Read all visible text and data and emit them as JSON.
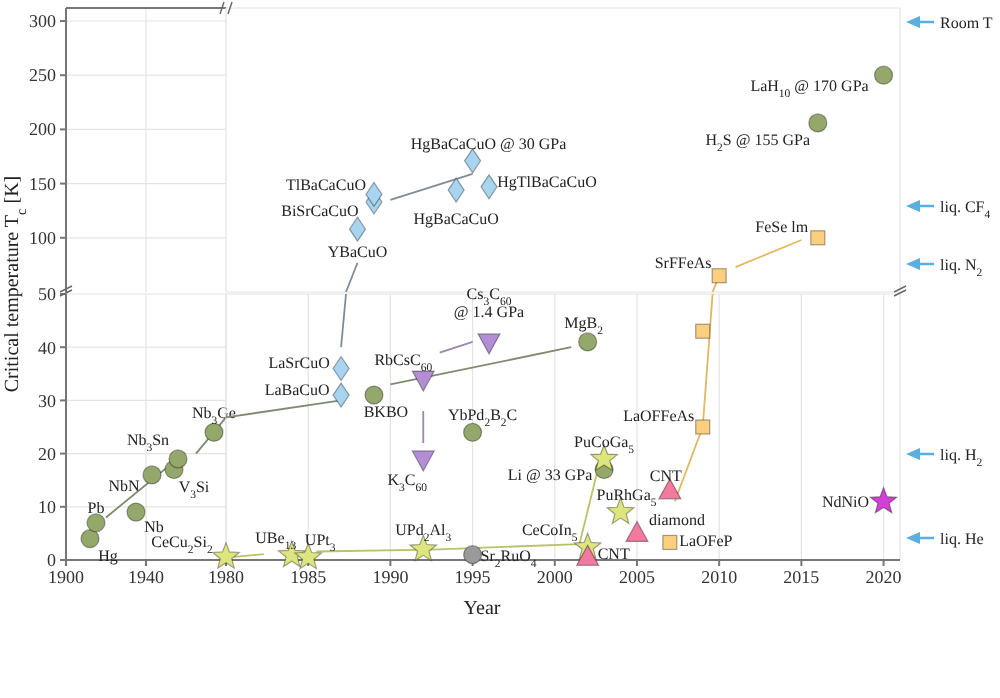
{
  "chart_data": [
    {
      "type": "scatter",
      "xlim": [
        1900,
        1980
      ],
      "xticks": [
        1900,
        1940
      ],
      "ylim": [
        50,
        312
      ],
      "yticks": [
        100,
        150,
        200,
        250,
        300
      ],
      "grid": true,
      "tick_labels": "y"
    },
    {
      "type": "scatter",
      "xlim": [
        1980,
        2021
      ],
      "xticks": [
        1980,
        1985,
        1990,
        1995,
        2000,
        2005,
        2010,
        2015,
        2020
      ],
      "ylim": [
        50,
        312
      ],
      "yticks": [
        100,
        150,
        200,
        250,
        300
      ],
      "grid": true,
      "tick_labels": false,
      "series": [
        {
          "type": "line",
          "marker": "none",
          "color": "#7f8c98",
          "x": [
            1987.3,
            1988,
            1989,
            1990,
            1995
          ],
          "values": [
            50,
            77,
            null,
            135,
            159
          ]
        },
        {
          "type": "line",
          "marker": "none",
          "color": "#e0b860",
          "x": [
            2009.6,
            2010,
            2010.5,
            2011,
            2015
          ],
          "values": [
            50,
            65,
            null,
            73,
            98
          ]
        },
        {
          "marker": "circle",
          "color": "#95a86b",
          "x": [
            2016,
            2020
          ],
          "values": [
            206,
            250
          ]
        },
        {
          "marker": "diamond",
          "color": "#a8d4f0",
          "x": [
            1988,
            1989,
            1989,
            1994,
            1995,
            1996
          ],
          "values": [
            108,
            133,
            140,
            144,
            171,
            147
          ]
        },
        {
          "marker": "square",
          "color": "#fbcf7f",
          "x": [
            2010,
            2016
          ],
          "values": [
            65,
            100
          ]
        }
      ],
      "annotations": [
        {
          "text": "YBaCuO",
          "x": 1988,
          "y": 108
        },
        {
          "text": "BiSrCaCuO",
          "x": 1989,
          "y": 133
        },
        {
          "text": "TlBaCaCuO",
          "x": 1989,
          "y": 140
        },
        {
          "text": "HgBaCaCuO @ 30 GPa",
          "x": 1995,
          "y": 171
        },
        {
          "text": "HgBaCaCuO",
          "x": 1994,
          "y": 144
        },
        {
          "text": "HgTlBaCaCuO",
          "x": 1996,
          "y": 147
        },
        {
          "text": "SrFFeAs",
          "x": 2010,
          "y": 65
        },
        {
          "text": "FeSe  lm",
          "x": 2016,
          "y": 100
        },
        {
          "text": "H$_{2}$S @ 155 GPa",
          "x": 2016,
          "y": 206
        },
        {
          "text": "LaH$_{10}$ @  170 GPa",
          "x": 2020,
          "y": 250
        },
        "Room T",
        "liq. CF$_{4}$",
        "liq. N$_{2}$"
      ]
    },
    {
      "type": "scatter",
      "ylabel": "Critical temperature T$_{c}$ [K]",
      "xlim": [
        1900,
        1980
      ],
      "xticks": [
        1900,
        1940
      ],
      "ylim": [
        0,
        50
      ],
      "yticks": [
        0,
        10,
        20,
        30,
        40,
        50
      ],
      "grid": true,
      "series": [
        {
          "type": "line",
          "marker": "none",
          "color": "#808a70",
          "x": [
            1920,
            1959,
            1962,
            1965,
            1980
          ],
          "values": [
            8,
            20,
            null,
            20,
            26.8
          ]
        },
        {
          "marker": "circle",
          "color": "#95a86b",
          "x": [
            1912,
            1915,
            1935,
            1943,
            1954,
            1956,
            1974
          ],
          "values": [
            4,
            7,
            9,
            16,
            17,
            19,
            24
          ]
        }
      ],
      "annotations": [
        {
          "text": "Hg",
          "x": 1912,
          "y": 4
        },
        {
          "text": "Pb",
          "x": 1915,
          "y": 7
        },
        {
          "text": "Nb",
          "x": 1935,
          "y": 9
        },
        {
          "text": "NbN",
          "x": 1943,
          "y": 16
        },
        {
          "text": "V$_{3}$Si",
          "x": 1954,
          "y": 17
        },
        {
          "text": "Nb$_{3}$Sn",
          "x": 1956,
          "y": 19
        },
        {
          "text": "Nb$_{3}$Ge",
          "x": 1974,
          "y": 24
        }
      ]
    },
    {
      "type": "scatter",
      "xlabel": "Year",
      "xlim": [
        1980,
        2021
      ],
      "xticks": [
        1980,
        1985,
        1990,
        1995,
        2000,
        2005,
        2010,
        2015,
        2020
      ],
      "ylim": [
        0,
        50
      ],
      "yticks": [
        0,
        10,
        20,
        30,
        40,
        50
      ],
      "grid": true,
      "tick_labels": "x",
      "series": [
        {
          "type": "line",
          "marker": "none",
          "color": "#808a70",
          "x": [
            1980,
            1987,
            1988,
            1990,
            2001
          ],
          "values": [
            26.8,
            30,
            null,
            33,
            40
          ]
        },
        {
          "type": "line",
          "marker": "none",
          "color": "#7f8c98",
          "x": [
            1987,
            1987.3
          ],
          "values": [
            40,
            50
          ]
        },
        {
          "type": "line",
          "marker": "none",
          "color": "#9b86ad",
          "x": [
            1992,
            1992,
            1992.5,
            1993,
            1995
          ],
          "values": [
            28,
            22,
            null,
            39,
            41
          ]
        },
        {
          "type": "line",
          "marker": "none",
          "color": "#b9c266",
          "x": [
            1980.5,
            1982.3,
            1984,
            1985.5,
            1991.5,
            1993,
            2001.5,
            2002.7
          ],
          "values": [
            0.6,
            1.1,
            null,
            1.6,
            1.9,
            2,
            3,
            18
          ]
        },
        {
          "type": "line",
          "marker": "none",
          "color": "#e0b860",
          "x": [
            2007.3,
            2009,
            2009.6
          ],
          "values": [
            11,
            25,
            50
          ]
        },
        {
          "marker": "circle",
          "color": "#95a86b",
          "x": [
            1989,
            1995,
            2002,
            2003
          ],
          "values": [
            31,
            24,
            41,
            17
          ]
        },
        {
          "marker": "circle",
          "color": "#9a9a9a",
          "x": [
            1995
          ],
          "values": [
            1
          ]
        },
        {
          "marker": "diamond",
          "color": "#a8d4f0",
          "x": [
            1987,
            1987
          ],
          "values": [
            31,
            36
          ]
        },
        {
          "marker": "triangle-down",
          "color": "#b48ed4",
          "x": [
            1992,
            1992,
            1996
          ],
          "values": [
            34,
            19,
            41
          ]
        },
        {
          "marker": "star",
          "color": "#dce57e",
          "x": [
            1980,
            1984,
            1985,
            1992,
            2002,
            2003,
            2004
          ],
          "values": [
            0.6,
            0.9,
            0.5,
            2,
            2.4,
            19,
            9
          ]
        },
        {
          "marker": "triangle",
          "color": "#f27aa0",
          "x": [
            2002,
            2005,
            2007
          ],
          "values": [
            0.5,
            5,
            13
          ]
        },
        {
          "marker": "square",
          "color": "#fbcf7f",
          "x": [
            2007,
            2009,
            2009
          ],
          "values": [
            3.3,
            25,
            43
          ]
        },
        {
          "marker": "star",
          "color": "#d43fd4",
          "x": [
            2020
          ],
          "values": [
            11
          ]
        }
      ],
      "annotations": [
        {
          "text": "BKBO",
          "x": 1989,
          "y": 31
        },
        {
          "text": "LaBaCuO",
          "x": 1987,
          "y": 31
        },
        {
          "text": "LaSrCuO",
          "x": 1987,
          "y": 36
        },
        {
          "text": "RbCsC$_{60}$",
          "x": 1992,
          "y": 34
        },
        {
          "text": "K$_{3}$C$_{60}$",
          "x": 1992,
          "y": 19
        },
        {
          "text": "Cs$_{3}$C$_{60}$\n@ 1.4 GPa",
          "x": 1996,
          "y": 41
        },
        {
          "text": "MgB$_{2}$",
          "x": 2002,
          "y": 41
        },
        {
          "text": "YbPd$_{2}$B$_{2}$C",
          "x": 1995,
          "y": 24
        },
        {
          "text": "PuCoGa$_{5}$",
          "x": 2003,
          "y": 19
        },
        {
          "text": "Li @ 33 GPa",
          "x": 2003,
          "y": 17
        },
        {
          "text": "CNT",
          "x": 2007,
          "y": 13
        },
        {
          "text": "PuRhGa$_{5}$",
          "x": 2004,
          "y": 9
        },
        {
          "text": "diamond",
          "x": 2005,
          "y": 5
        },
        {
          "text": "LaOFeP",
          "x": 2007,
          "y": 3.3
        },
        {
          "text": "CeCoIn$_{5}$",
          "x": 2002,
          "y": 2.4
        },
        {
          "text": "CNT",
          "x": 2002,
          "y": 0.5
        },
        {
          "text": "Sr$_{2}$RuO$_{4}$",
          "x": 1995,
          "y": 1
        },
        {
          "text": "UPd$_{2}$Al$_{3}$",
          "x": 1992,
          "y": 2
        },
        {
          "text": "UPt$_{3}$",
          "x": 1985,
          "y": 0.5
        },
        {
          "text": "UBe$_{13}$",
          "x": 1984,
          "y": 0.9
        },
        {
          "text": "CeCu$_{2}$Si$_{2}$",
          "x": 1980,
          "y": 0.6
        },
        {
          "text": "LaOFFeAs",
          "x": 2009,
          "y": 25
        },
        {
          "text": "NdNiO",
          "x": 2020,
          "y": 11
        },
        "liq. H$_{2}$",
        "liq. He"
      ]
    }
  ]
}
